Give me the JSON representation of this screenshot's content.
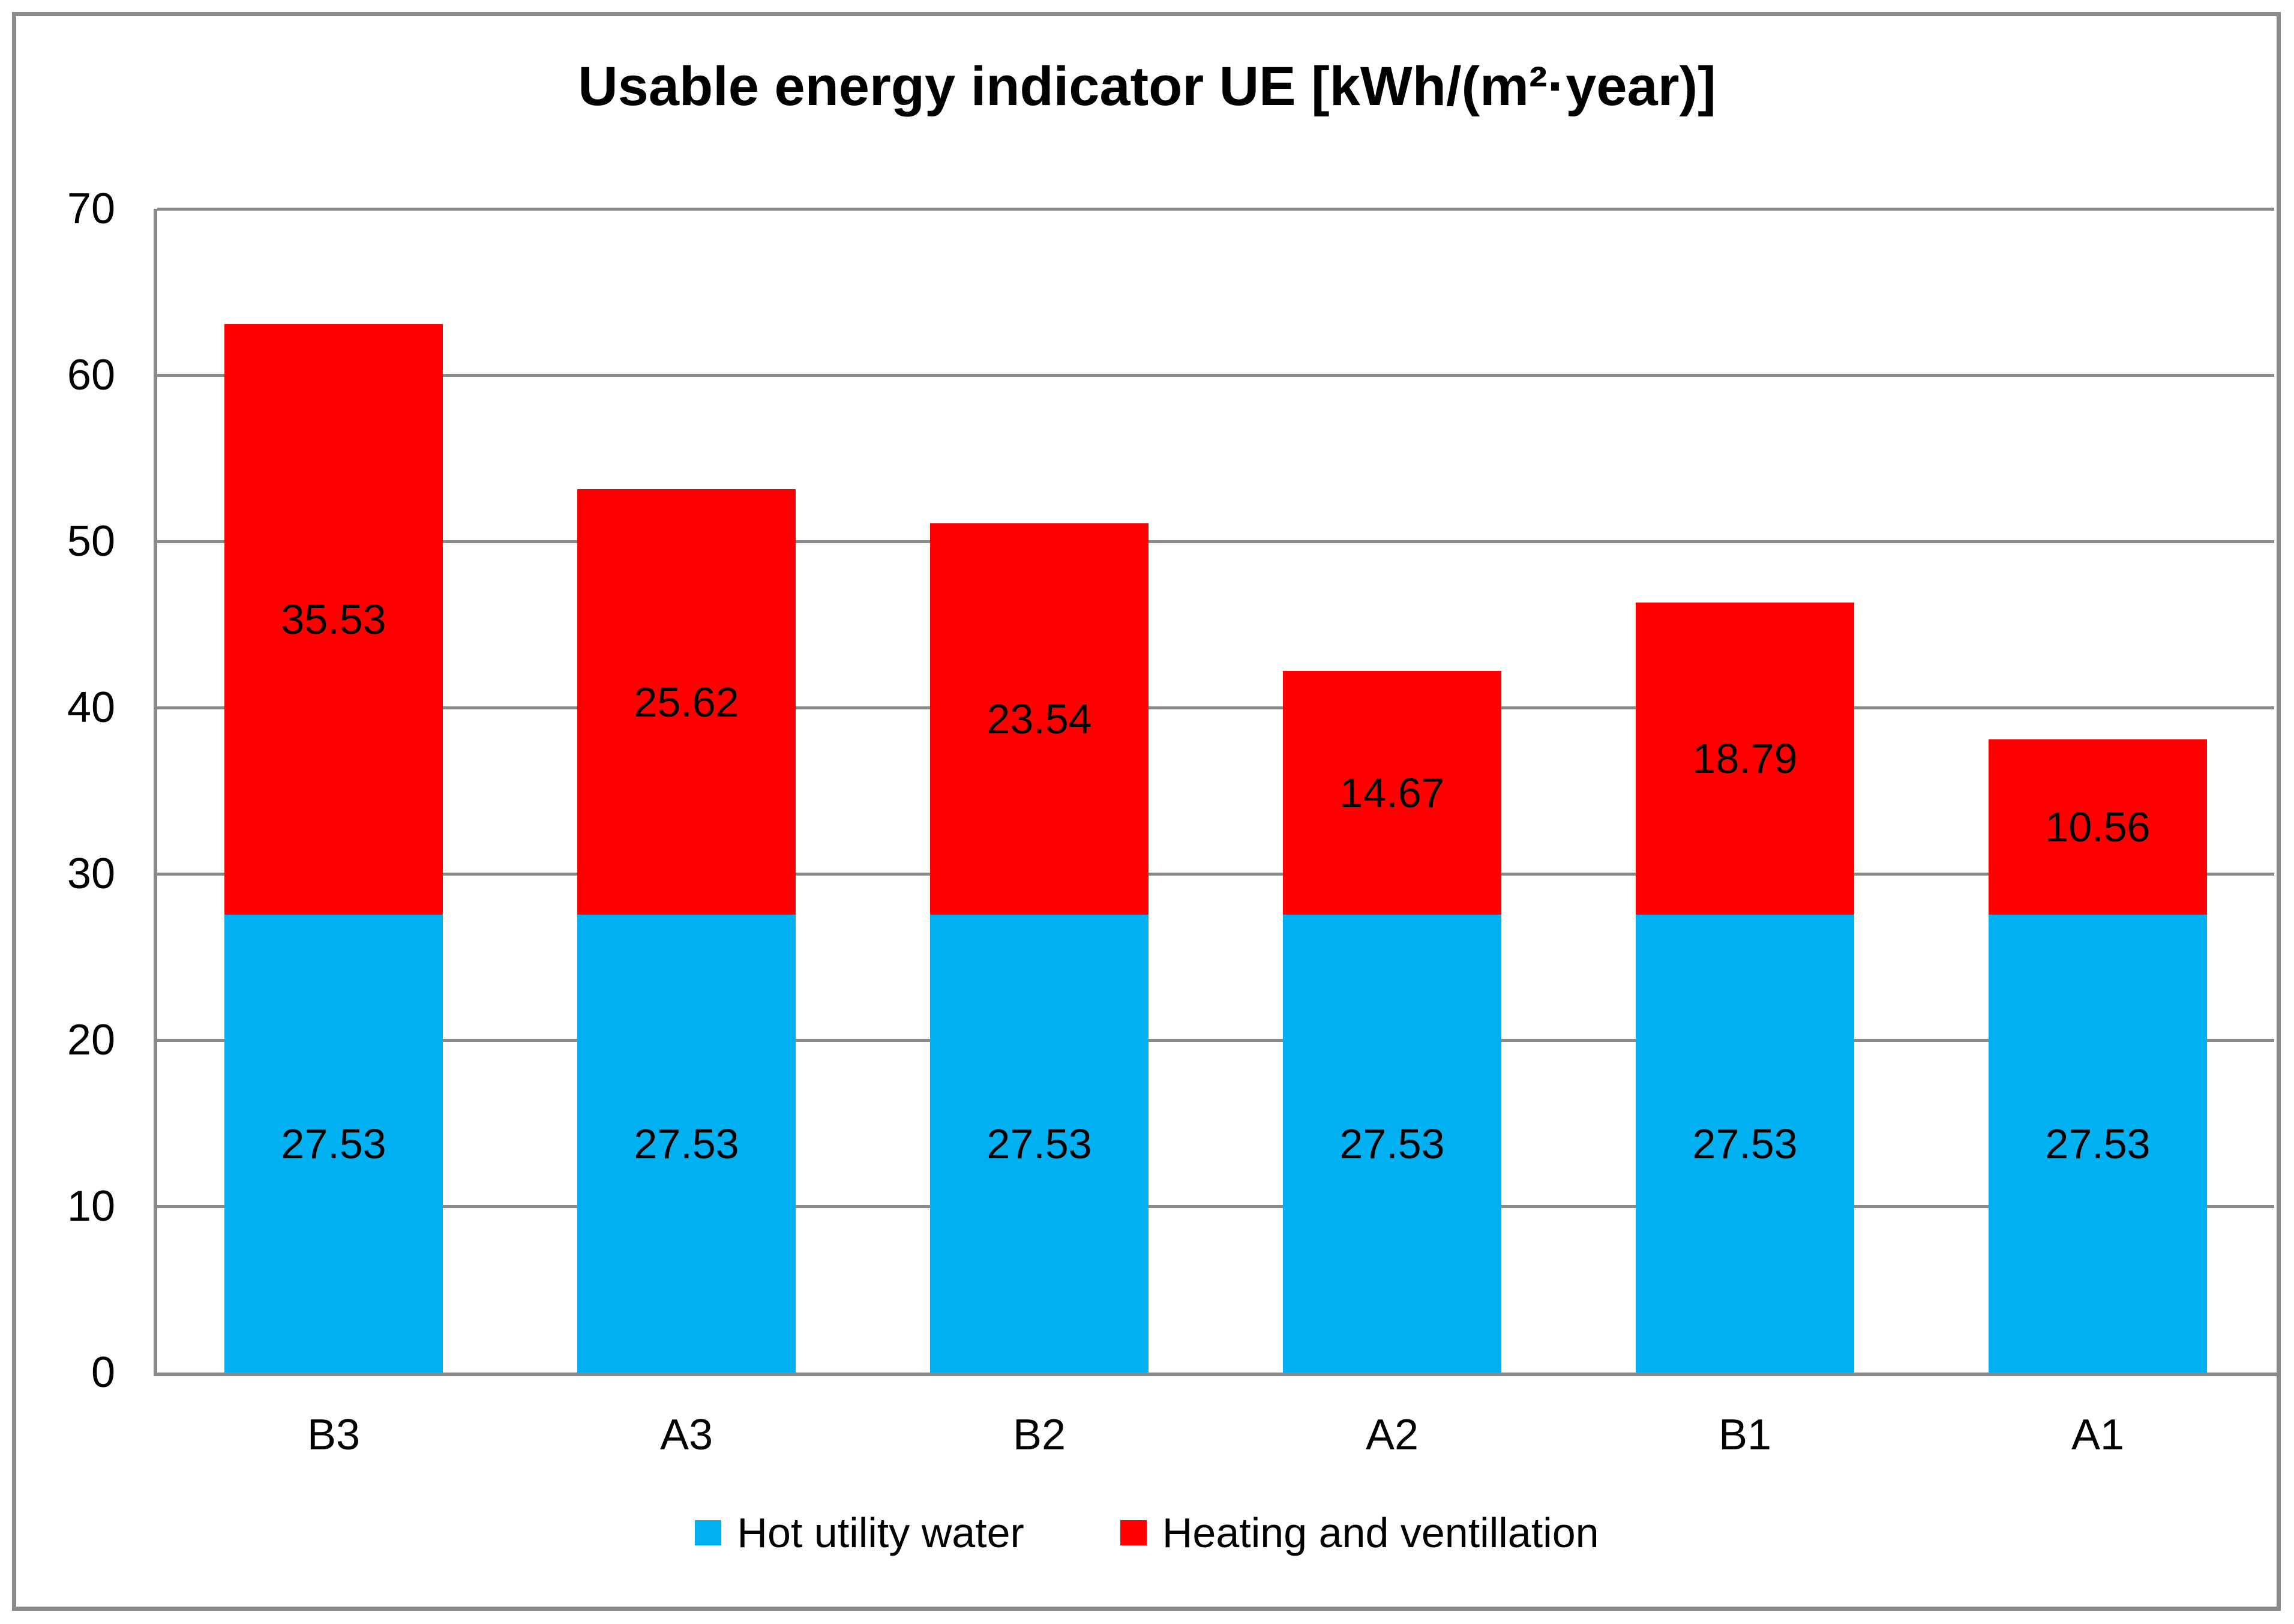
{
  "chart_data": {
    "type": "bar",
    "stacked": true,
    "title": "Usable energy indicator UE [kWh/(m²·year)]",
    "categories": [
      "B3",
      "A3",
      "B2",
      "A2",
      "B1",
      "A1"
    ],
    "series": [
      {
        "name": "Hot utility water",
        "color": "#00B0F0",
        "values": [
          27.53,
          27.53,
          27.53,
          27.53,
          27.53,
          27.53
        ]
      },
      {
        "name": "Heating and ventillation",
        "color": "#FF0000",
        "values": [
          35.53,
          25.62,
          23.54,
          14.67,
          18.79,
          10.56
        ]
      }
    ],
    "totals": [
      63.06,
      53.15,
      51.07,
      42.2,
      46.32,
      38.09
    ],
    "xlabel": "",
    "ylabel": "",
    "ylim": [
      0,
      70
    ],
    "ytick_step": 10,
    "yticks": [
      0,
      10,
      20,
      30,
      40,
      50,
      60,
      70
    ],
    "grid": true,
    "data_labels": true,
    "legend_position": "bottom"
  },
  "colors": {
    "grid": "#8A8A8A",
    "axis": "#8A8A8A",
    "border": "#8A8A8A",
    "background": "#FFFFFF",
    "label_text": "#000000"
  }
}
